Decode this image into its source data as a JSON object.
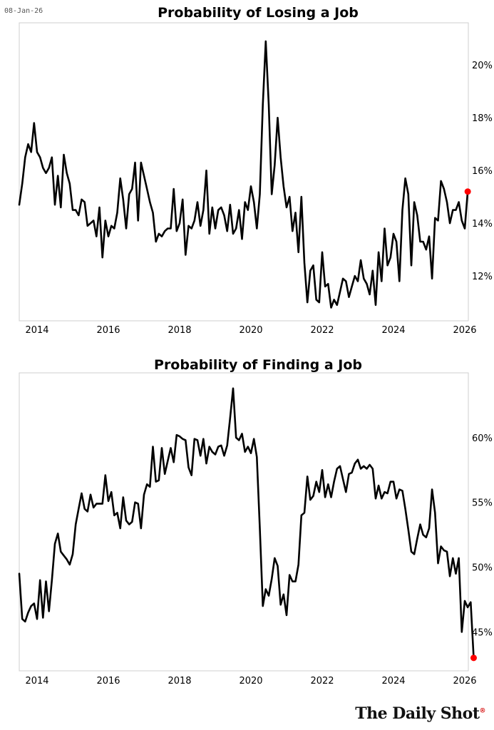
{
  "date_stamp": "08-Jan-26",
  "brand": "The Daily Shot",
  "brand_mark": "®",
  "chart_data": [
    {
      "type": "line",
      "title": "Probability of Losing a Job",
      "xlabel": "",
      "ylabel": "",
      "x_range": [
        2013.5,
        2026.1
      ],
      "ylim": [
        10.3,
        21.6
      ],
      "y_ticks": [
        12,
        14,
        16,
        18,
        20
      ],
      "y_tick_labels": [
        "12%",
        "14%",
        "16%",
        "18%",
        "20%"
      ],
      "x_ticks": [
        2014,
        2016,
        2018,
        2020,
        2022,
        2024,
        2026
      ],
      "x_tick_labels": [
        "2014",
        "2016",
        "2018",
        "2020",
        "2022",
        "2024",
        "2026"
      ],
      "marker_color": "#ff0000",
      "series": [
        {
          "name": "Probability of Losing a Job (%)",
          "start_year": 2013.5,
          "step": 0.08333,
          "values": [
            14.7,
            15.5,
            16.5,
            17.0,
            16.7,
            17.8,
            16.7,
            16.5,
            16.1,
            15.9,
            16.1,
            16.5,
            14.7,
            15.8,
            14.6,
            16.6,
            15.9,
            15.5,
            14.5,
            14.5,
            14.3,
            14.9,
            14.8,
            13.9,
            14.0,
            14.1,
            13.5,
            14.6,
            12.7,
            14.1,
            13.5,
            13.9,
            13.8,
            14.4,
            15.7,
            14.9,
            13.8,
            15.1,
            15.3,
            16.3,
            14.1,
            16.3,
            15.8,
            15.3,
            14.8,
            14.4,
            13.3,
            13.6,
            13.5,
            13.7,
            13.8,
            13.8,
            15.3,
            13.7,
            14.0,
            14.9,
            12.8,
            13.9,
            13.8,
            14.1,
            14.8,
            13.9,
            14.5,
            16.0,
            13.6,
            14.6,
            13.8,
            14.5,
            14.6,
            14.3,
            13.7,
            14.7,
            13.6,
            13.8,
            14.5,
            13.4,
            14.8,
            14.5,
            15.4,
            14.8,
            13.8,
            15.1,
            18.5,
            20.9,
            18.5,
            15.1,
            16.2,
            18.0,
            16.5,
            15.4,
            14.6,
            15.0,
            13.7,
            14.4,
            12.9,
            15.0,
            12.5,
            11.0,
            12.2,
            12.4,
            11.1,
            11.0,
            12.9,
            11.6,
            11.7,
            10.8,
            11.1,
            10.9,
            11.4,
            11.9,
            11.8,
            11.2,
            11.6,
            12.0,
            11.8,
            12.6,
            11.9,
            11.7,
            11.3,
            12.2,
            10.9,
            12.9,
            11.8,
            13.8,
            12.4,
            12.7,
            13.6,
            13.3,
            11.8,
            14.5,
            15.7,
            15.1,
            12.4,
            14.8,
            14.3,
            13.3,
            13.3,
            13.0,
            13.5,
            11.9,
            14.2,
            14.1,
            15.6,
            15.3,
            14.8,
            14.0,
            14.5,
            14.5,
            14.8,
            14.1,
            13.8,
            15.2
          ]
        }
      ]
    },
    {
      "type": "line",
      "title": "Probability of Finding a Job",
      "xlabel": "",
      "ylabel": "",
      "x_range": [
        2013.5,
        2026.1
      ],
      "ylim": [
        42.0,
        65.0
      ],
      "y_ticks": [
        45,
        50,
        55,
        60
      ],
      "y_tick_labels": [
        "45%",
        "50%",
        "55%",
        "60%"
      ],
      "x_ticks": [
        2014,
        2016,
        2018,
        2020,
        2022,
        2024,
        2026
      ],
      "x_tick_labels": [
        "2014",
        "2016",
        "2018",
        "2020",
        "2022",
        "2024",
        "2026"
      ],
      "marker_color": "#ff0000",
      "series": [
        {
          "name": "Probability of Finding a Job (%)",
          "start_year": 2013.5,
          "step": 0.08333,
          "values": [
            49.5,
            46.0,
            45.8,
            46.5,
            47.0,
            47.2,
            46.0,
            49.0,
            46.1,
            48.9,
            46.6,
            49.0,
            51.8,
            52.6,
            51.2,
            50.9,
            50.6,
            50.2,
            51.0,
            53.3,
            54.5,
            55.7,
            54.5,
            54.3,
            55.6,
            54.6,
            54.9,
            54.9,
            54.9,
            57.1,
            55.1,
            55.8,
            54.0,
            54.2,
            53.0,
            55.4,
            53.6,
            53.3,
            53.5,
            55.0,
            54.9,
            53.0,
            55.6,
            56.4,
            56.2,
            59.3,
            56.6,
            56.7,
            59.2,
            57.2,
            58.2,
            59.2,
            58.1,
            60.2,
            60.1,
            59.9,
            59.8,
            57.7,
            57.1,
            59.9,
            59.8,
            58.6,
            59.9,
            58.0,
            59.3,
            58.9,
            58.7,
            59.3,
            59.4,
            58.6,
            59.4,
            61.5,
            63.8,
            60.0,
            59.8,
            60.3,
            58.9,
            59.3,
            58.8,
            59.9,
            58.5,
            53.0,
            47.0,
            48.3,
            47.8,
            49.1,
            50.7,
            50.1,
            47.1,
            47.9,
            46.3,
            49.4,
            48.9,
            48.9,
            50.2,
            54.0,
            54.2,
            57.0,
            55.2,
            55.5,
            56.6,
            55.8,
            57.5,
            55.4,
            56.4,
            55.4,
            56.6,
            57.6,
            57.8,
            56.8,
            55.8,
            57.2,
            57.3,
            58.0,
            58.3,
            57.6,
            57.8,
            57.6,
            57.9,
            57.6,
            55.3,
            56.3,
            55.3,
            55.8,
            55.7,
            56.6,
            56.6,
            55.3,
            56.0,
            55.9,
            54.5,
            52.9,
            51.2,
            51.0,
            52.2,
            53.3,
            52.5,
            52.3,
            53.0,
            56.0,
            54.2,
            50.3,
            51.6,
            51.3,
            51.2,
            49.3,
            50.7,
            49.5,
            50.7,
            45.0,
            47.4,
            46.9,
            47.3,
            43.0
          ]
        }
      ]
    }
  ]
}
